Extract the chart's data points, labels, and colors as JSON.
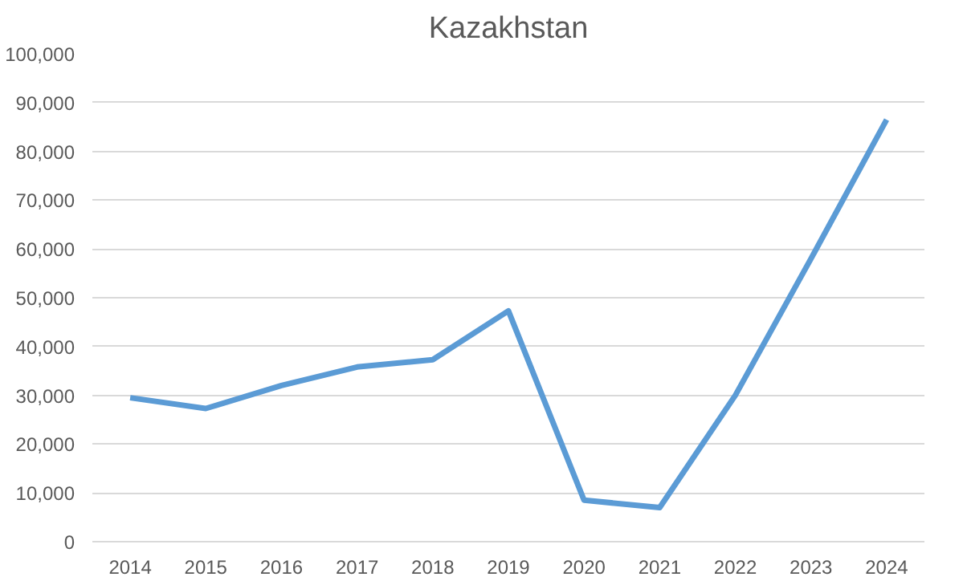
{
  "chart_data": {
    "type": "line",
    "title": "Kazakhstan",
    "categories": [
      "2014",
      "2015",
      "2016",
      "2017",
      "2018",
      "2019",
      "2020",
      "2021",
      "2022",
      "2023",
      "2024"
    ],
    "series": [
      {
        "color": "#5b9bd5",
        "values": [
          29500,
          27300,
          32000,
          35800,
          37300,
          47300,
          8500,
          7000,
          30000,
          58000,
          86500
        ]
      }
    ],
    "ylim": [
      0,
      100000
    ],
    "yticks": [
      {
        "value": 0,
        "label": "0"
      },
      {
        "value": 10000,
        "label": "10,000"
      },
      {
        "value": 20000,
        "label": "20,000"
      },
      {
        "value": 30000,
        "label": "30,000"
      },
      {
        "value": 40000,
        "label": "40,000"
      },
      {
        "value": 50000,
        "label": "50,000"
      },
      {
        "value": 60000,
        "label": "60,000"
      },
      {
        "value": 70000,
        "label": "70,000"
      },
      {
        "value": 80000,
        "label": "80,000"
      },
      {
        "value": 90000,
        "label": "90,000"
      },
      {
        "value": 100000,
        "label": "100,000"
      }
    ],
    "grid": "y",
    "marker": "none",
    "line_style": "solid"
  }
}
